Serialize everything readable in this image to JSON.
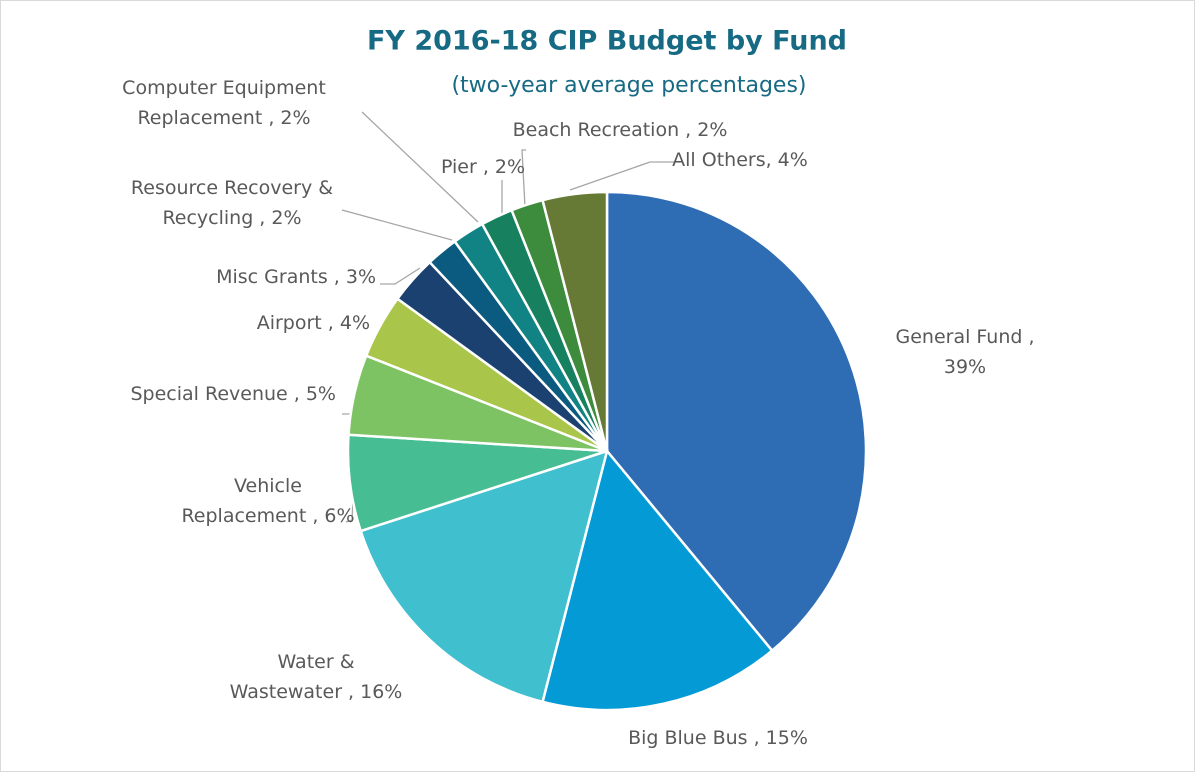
{
  "chart_data": {
    "type": "pie",
    "title": "FY 2016-18 CIP Budget by Fund",
    "subtitle": "(two-year average percentages)",
    "labels": [
      [
        "General Fund ,",
        "39%"
      ],
      [
        "Big Blue Bus , 15%"
      ],
      [
        "Water &",
        "Wastewater , 16%"
      ],
      [
        "Vehicle",
        "Replacement , 6%"
      ],
      [
        "Special Revenue , 5%"
      ],
      [
        "Airport , 4%"
      ],
      [
        "Misc Grants , 3%"
      ],
      [
        "Resource Recovery &",
        "Recycling , 2%"
      ],
      [
        "Computer Equipment",
        "Replacement , 2%"
      ],
      [
        "Pier , 2%"
      ],
      [
        "Beach Recreation , 2%"
      ],
      [
        "All Others, 4%"
      ]
    ],
    "values": [
      39,
      15,
      16,
      6,
      5,
      4,
      3,
      2,
      2,
      2,
      2,
      4
    ],
    "colors": [
      "#2e6db4",
      "#049ad6",
      "#40bfcf",
      "#47bd94",
      "#7dc364",
      "#a9c54a",
      "#1a4170",
      "#0b5a7f",
      "#128384",
      "#17805e",
      "#3d8b3c",
      "#667a36"
    ]
  }
}
